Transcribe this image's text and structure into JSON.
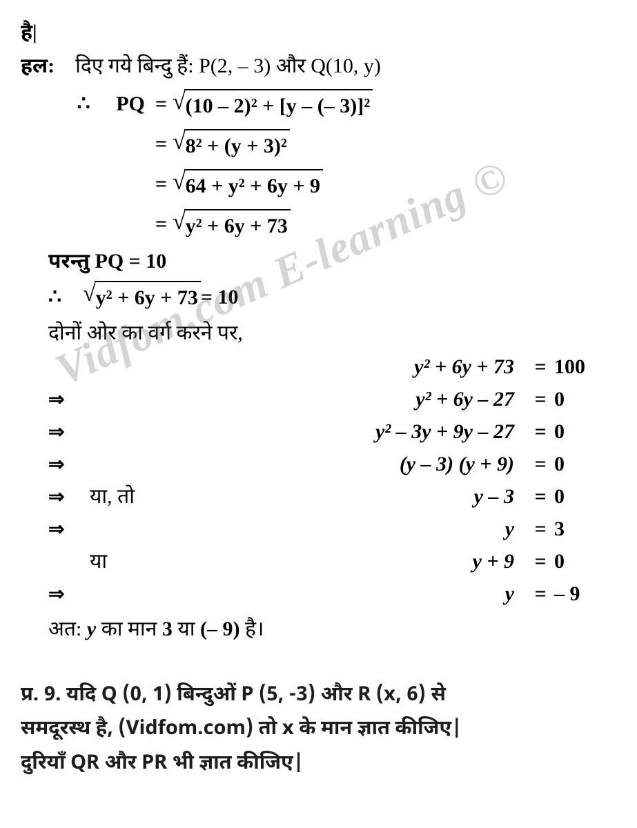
{
  "header_tail": "है|",
  "solution_label": "हल:",
  "given_text": "दिए गये बिन्दु हैं: P(2, – 3) और Q(10, y)",
  "therefore": "∴",
  "pq_label": "PQ",
  "eq_sign": "=",
  "sqrt_expressions": {
    "expr1_body": "(10 – 2)² + [y – (– 3)]²",
    "expr2_body": "8² + (y + 3)²",
    "expr3_body": "64 + y² + 6y + 9",
    "expr4_body": "y² + 6y + 73"
  },
  "but_text": "परन्तु  PQ =  10",
  "sqrt5_body": "y² + 6y + 73",
  "sqrt5_rhs": " = 10",
  "square_both": "दोनों ओर का वर्ग करने पर,",
  "steps": [
    {
      "arr": "",
      "txt": "",
      "expr": "y² + 6y + 73",
      "res": "100"
    },
    {
      "arr": "⇒",
      "txt": "",
      "expr": "y² + 6y – 27",
      "res": "0"
    },
    {
      "arr": "⇒",
      "txt": "",
      "expr": "y² – 3y + 9y – 27",
      "res": "0"
    },
    {
      "arr": "⇒",
      "txt": "",
      "expr": "(y – 3) (y + 9)",
      "res": "0"
    },
    {
      "arr": "⇒",
      "txt": "या, तो",
      "expr": "y – 3",
      "res": "0"
    },
    {
      "arr": "⇒",
      "txt": "",
      "expr": "y",
      "res": "3"
    },
    {
      "arr": "",
      "txt": "या",
      "expr": "y + 9",
      "res": "0"
    },
    {
      "arr": "⇒",
      "txt": "",
      "expr": "y",
      "res": "– 9"
    }
  ],
  "conclusion": "अत: y का मान 3 या (– 9) है।",
  "watermark": "Vidfom.com E-learning ©",
  "question9": {
    "label": "प्र. 9.",
    "line1": "यदि Q (0, 1) बिन्दुओं P (5, -3) और R (x, 6) से",
    "line2": "समदूरस्थ है, (Vidfom.com) तो x के मान ज्ञात कीजिए|",
    "line3": "दुरियाँ QR और PR भी ज्ञात कीजिए|"
  },
  "colors": {
    "text": "#000000",
    "background": "#ffffff",
    "watermark": "rgba(100,100,100,0.28)",
    "question": "#1e1e1e"
  }
}
